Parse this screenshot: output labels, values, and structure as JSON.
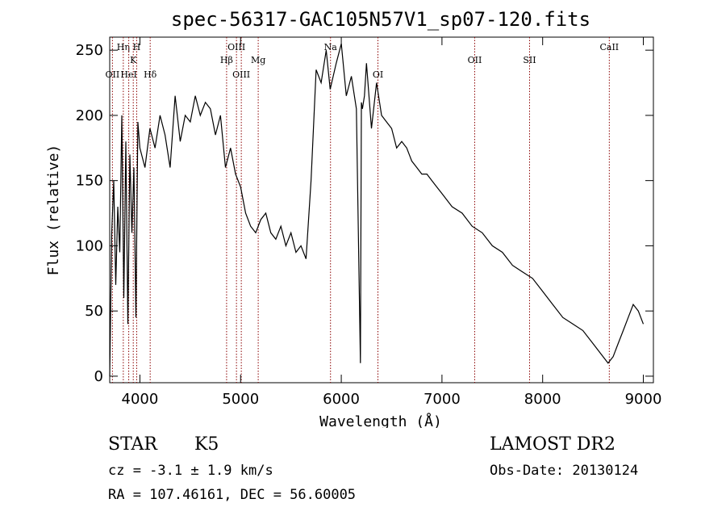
{
  "chart_data": {
    "type": "line",
    "title": "spec-56317-GAC105N57V1_sp07-120.fits",
    "xlabel": "Wavelength (Å)",
    "ylabel": "Flux (relative)",
    "xlim": [
      3700,
      9100
    ],
    "ylim": [
      -5,
      260
    ],
    "xticks": [
      4000,
      5000,
      6000,
      7000,
      8000,
      9000
    ],
    "yticks": [
      0,
      50,
      100,
      150,
      200,
      250
    ],
    "grid": false,
    "line_color": "#000000",
    "marker_color": "#8b0000",
    "spectrum": {
      "x": [
        3700,
        3720,
        3740,
        3760,
        3780,
        3800,
        3820,
        3840,
        3860,
        3880,
        3900,
        3920,
        3940,
        3960,
        3980,
        4000,
        4050,
        4100,
        4150,
        4200,
        4250,
        4300,
        4350,
        4400,
        4450,
        4500,
        4550,
        4600,
        4650,
        4700,
        4750,
        4800,
        4850,
        4900,
        4950,
        5000,
        5050,
        5100,
        5150,
        5200,
        5250,
        5300,
        5350,
        5400,
        5450,
        5500,
        5550,
        5600,
        5650,
        5700,
        5750,
        5800,
        5850,
        5890,
        5950,
        6000,
        6050,
        6100,
        6150,
        6190,
        6200,
        6210,
        6230,
        6250,
        6300,
        6350,
        6400,
        6450,
        6500,
        6550,
        6600,
        6650,
        6700,
        6750,
        6800,
        6850,
        6900,
        6950,
        7000,
        7100,
        7200,
        7300,
        7400,
        7500,
        7600,
        7700,
        7800,
        7900,
        8000,
        8100,
        8200,
        8300,
        8400,
        8500,
        8600,
        8650,
        8700,
        8750,
        8800,
        8850,
        8900,
        8950,
        9000
      ],
      "y": [
        0,
        110,
        150,
        70,
        130,
        95,
        200,
        60,
        180,
        40,
        170,
        110,
        160,
        45,
        195,
        175,
        160,
        190,
        175,
        200,
        185,
        160,
        215,
        180,
        200,
        195,
        215,
        200,
        210,
        205,
        185,
        200,
        160,
        175,
        155,
        145,
        125,
        115,
        110,
        120,
        125,
        110,
        105,
        115,
        100,
        110,
        95,
        100,
        90,
        150,
        235,
        225,
        250,
        220,
        240,
        255,
        215,
        230,
        205,
        10,
        210,
        205,
        215,
        240,
        190,
        225,
        200,
        195,
        190,
        175,
        180,
        175,
        165,
        160,
        155,
        155,
        150,
        145,
        140,
        130,
        125,
        115,
        110,
        100,
        95,
        85,
        80,
        75,
        65,
        55,
        45,
        40,
        35,
        25,
        15,
        10,
        15,
        25,
        35,
        45,
        55,
        50,
        40
      ]
    },
    "lines": [
      {
        "label": "OII",
        "x": 3727,
        "row": 3
      },
      {
        "label": "Hη",
        "x": 3835,
        "row": 1
      },
      {
        "label": "HeI",
        "x": 3889,
        "row": 3
      },
      {
        "label": "K",
        "x": 3934,
        "row": 2
      },
      {
        "label": "H",
        "x": 3968,
        "row": 1
      },
      {
        "label": "Hδ",
        "x": 4102,
        "row": 3
      },
      {
        "label": "Hβ",
        "x": 4861,
        "row": 2
      },
      {
        "label": "OIII",
        "x": 4959,
        "row": 1
      },
      {
        "label": "OIII",
        "x": 5007,
        "row": 3
      },
      {
        "label": "Mg",
        "x": 5175,
        "row": 2
      },
      {
        "label": "Na",
        "x": 5893,
        "row": 1
      },
      {
        "label": "OI",
        "x": 6364,
        "row": 3
      },
      {
        "label": "OII",
        "x": 7325,
        "row": 2
      },
      {
        "label": "SII",
        "x": 7870,
        "row": 2
      },
      {
        "label": "CaII",
        "x": 8662,
        "row": 1
      }
    ]
  },
  "footer": {
    "object_class": "STAR",
    "subclass": "K5",
    "survey": "LAMOST DR2",
    "cz": "cz = -3.1 ± 1.9 km/s",
    "obs_date": "Obs-Date: 20130124",
    "radec": "RA = 107.46161, DEC =  56.60005"
  }
}
